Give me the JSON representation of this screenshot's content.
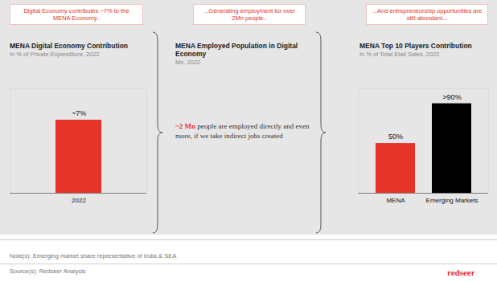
{
  "chart_data": [
    {
      "type": "bar",
      "title": "MENA Digital Economy Contribution",
      "subtitle": "In % of Private Expenditure, 2022",
      "categories": [
        "2022"
      ],
      "values": [
        7
      ],
      "value_labels": [
        "~7%"
      ],
      "color": "#e63329",
      "ylim": [
        0,
        10
      ],
      "data_labels": true,
      "tick_labels": "x"
    },
    {
      "type": "bar",
      "title": "MENA Top 10 Players Contribution",
      "subtitle": "In % of Total Etail Sales, 2022",
      "categories": [
        "MENA",
        "Emerging Markets"
      ],
      "values": [
        50,
        90
      ],
      "value_labels": [
        "50%",
        ">90%"
      ],
      "colors": [
        "#e63329",
        "#000000"
      ],
      "ylim": [
        0,
        105
      ],
      "data_labels": true,
      "tick_labels": "x"
    }
  ],
  "banners": [
    "Digital Economy contributes ~7% to the MENA Economy..",
    "...Generating employment for over 2Mn people..",
    "...And entrepreneurship opportunities are still abundant..."
  ],
  "middle_panel": {
    "title": "MENA Employed Population in Digital Economy",
    "subtitle": "Mn, 2022",
    "highlight": "~2 Mn",
    "text": "people are employed directly and even more, if we take indirect jobs created"
  },
  "note": "Note(s): Emerging market share representative of India & SEA",
  "source": "Source(s): Redseer Analysis",
  "brand": "redseer"
}
